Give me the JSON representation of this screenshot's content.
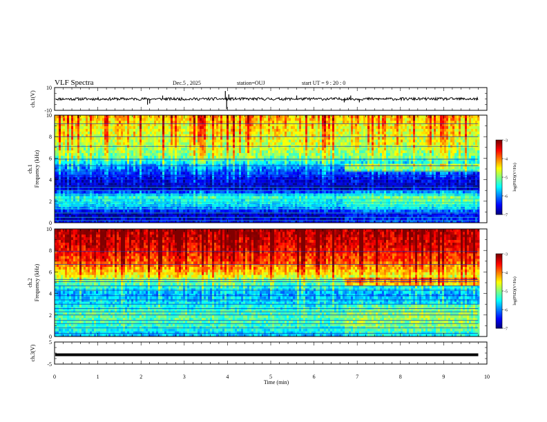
{
  "header": {
    "title": "VLF Spectra",
    "date": "Dec.5  , 2025",
    "station": "station=OUJ",
    "start": "start  UT  =   9 : 20 : 0"
  },
  "chart_data": [
    {
      "type": "line",
      "panel": "ch1-waveform",
      "ylabel": "ch.1(V)",
      "ylim": [
        -10,
        10
      ],
      "yticks": [
        10,
        -10
      ],
      "xlim": [
        0,
        10
      ],
      "trace_end_min": 9.8,
      "baseline": 0,
      "noise_amplitude": 1.2,
      "spikes": [
        {
          "x": 2.15,
          "y": -5
        },
        {
          "x": 2.2,
          "y": -4
        },
        {
          "x": 2.5,
          "y": 3
        },
        {
          "x": 3.95,
          "y": 7
        },
        {
          "x": 3.98,
          "y": -9
        },
        {
          "x": 4.03,
          "y": 4
        },
        {
          "x": 5.6,
          "y": 3
        },
        {
          "x": 6.7,
          "y": -3
        },
        {
          "x": 6.85,
          "y": 3
        },
        {
          "x": 7.05,
          "y": -3
        }
      ]
    },
    {
      "type": "heatmap",
      "panel": "ch1-spectrogram",
      "ylabel": "ch.1\nFrequency (kHz)",
      "xlim": [
        0,
        10
      ],
      "ylim": [
        0,
        10
      ],
      "yticks": [
        0,
        2,
        4,
        6,
        8,
        10
      ],
      "data_end_min": 9.8,
      "colorbar": {
        "label": "log(PSD)(V²/Hz)",
        "range": [
          -7,
          -3
        ],
        "ticks": [
          -3,
          -4,
          -5,
          -6,
          -7
        ]
      },
      "background_levels_by_khz": [
        {
          "f": 0,
          "v": -6.5
        },
        {
          "f": 0.8,
          "v": -6.9
        },
        {
          "f": 1.5,
          "v": -5.8
        },
        {
          "f": 2.4,
          "v": -5.4
        },
        {
          "f": 3.2,
          "v": -6.9
        },
        {
          "f": 4.2,
          "v": -6.6
        },
        {
          "f": 5.2,
          "v": -6.0
        },
        {
          "f": 6.2,
          "v": -5.1
        },
        {
          "f": 7.5,
          "v": -4.8
        },
        {
          "f": 9,
          "v": -4.6
        },
        {
          "f": 10,
          "v": -4.4
        }
      ],
      "regime_change_min": 6.7,
      "narrowband_lines_khz": [
        0.2,
        0.5,
        0.9,
        1.3,
        1.6,
        1.9,
        2.2,
        2.6,
        3.0,
        3.3,
        3.5,
        3.7,
        4.0,
        4.4,
        4.8,
        5.3,
        5.9,
        7.1,
        8.0,
        9.2
      ]
    },
    {
      "type": "heatmap",
      "panel": "ch2-spectrogram",
      "ylabel": "ch.2\nFrequency (kHz)",
      "xlim": [
        0,
        10
      ],
      "ylim": [
        0,
        10
      ],
      "yticks": [
        0,
        2,
        4,
        6,
        8,
        10
      ],
      "data_end_min": 9.8,
      "colorbar": {
        "label": "log(PSD)(V²/Hz)",
        "range": [
          -7,
          -3
        ],
        "ticks": [
          -3,
          -4,
          -5,
          -6,
          -7
        ]
      },
      "background_levels_by_khz": [
        {
          "f": 0,
          "v": -5.8
        },
        {
          "f": 1.0,
          "v": -5.3
        },
        {
          "f": 2.0,
          "v": -5.2
        },
        {
          "f": 3.0,
          "v": -5.6
        },
        {
          "f": 4.0,
          "v": -5.9
        },
        {
          "f": 5.0,
          "v": -5.2
        },
        {
          "f": 6.0,
          "v": -4.4
        },
        {
          "f": 7.0,
          "v": -3.9
        },
        {
          "f": 8.5,
          "v": -3.5
        },
        {
          "f": 10,
          "v": -3.3
        }
      ],
      "regime_change_min": 6.7,
      "narrowband_lines_khz": [
        0.3,
        0.8,
        1.2,
        1.5,
        2.0,
        2.3,
        2.6,
        3.0,
        3.4,
        3.8,
        4.3,
        4.7,
        5.1,
        5.3,
        6.7,
        7.9
      ]
    },
    {
      "type": "line",
      "panel": "ch3-waveform",
      "ylabel": "ch.3(V)",
      "ylim": [
        -5,
        5
      ],
      "yticks": [
        5,
        -5
      ],
      "xlim": [
        0,
        10
      ],
      "trace_end_min": 9.8,
      "level": -0.8
    }
  ],
  "x_axis": {
    "label": "Time  (min)",
    "ticks": [
      0,
      1,
      2,
      3,
      4,
      5,
      6,
      7,
      8,
      9,
      10
    ]
  }
}
